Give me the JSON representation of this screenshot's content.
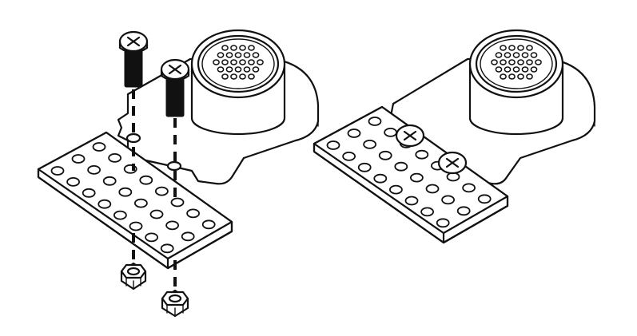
{
  "figure": {
    "panels": [
      "exploded-view",
      "assembled-view"
    ],
    "colors": {
      "line": "#111111",
      "background": "#ffffff"
    },
    "parts": {
      "speaker_module": "speaker-with-mounting-plate",
      "beam_plate": "perforated-beam-plate",
      "screws_per_assembly": 2,
      "nuts_per_assembly": 2
    },
    "beam_plate": {
      "rows": 3,
      "columns": 8
    }
  }
}
